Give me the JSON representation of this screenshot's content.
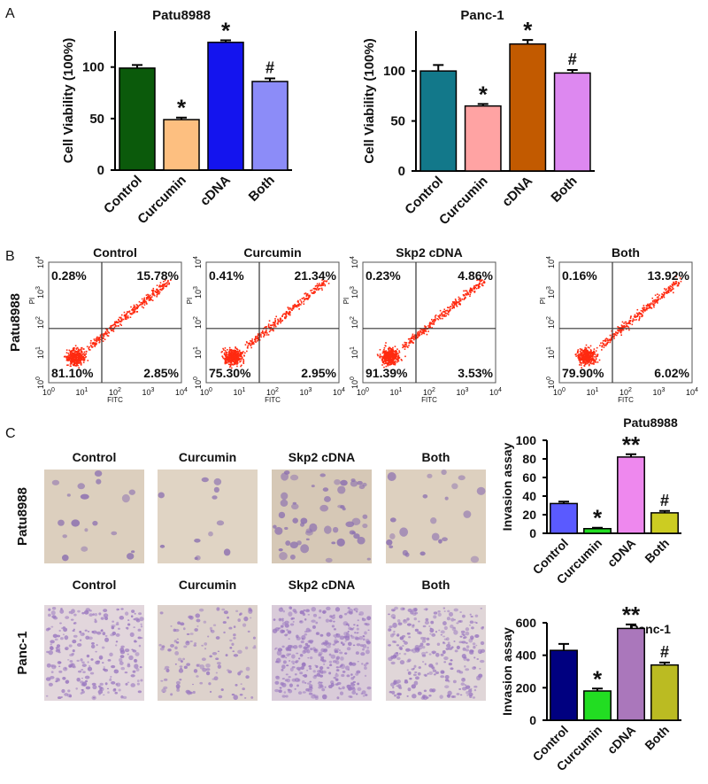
{
  "panel_labels": [
    "A",
    "B",
    "C"
  ],
  "chart_data": [
    {
      "type": "bar",
      "title": "Patu8988",
      "y_label": "Cell Viability (100%)",
      "categories": [
        "Control",
        "Curcumin",
        "cDNA",
        "Both"
      ],
      "values": [
        99,
        49,
        124,
        86
      ],
      "errors": [
        3,
        2,
        2,
        3
      ],
      "colors": [
        "#0b5a0b",
        "#fdbf80",
        "#1414ee",
        "#8c8cf8"
      ],
      "annotations": [
        null,
        "*",
        "*",
        "#"
      ],
      "ylim": [
        0,
        135
      ],
      "yticks": [
        0,
        50,
        100
      ]
    },
    {
      "type": "bar",
      "title": "Panc-1",
      "y_label": "Cell Viability (100%)",
      "categories": [
        "Control",
        "Curcumin",
        "cDNA",
        "Both"
      ],
      "values": [
        100,
        65,
        127,
        98
      ],
      "errors": [
        6,
        2,
        4,
        3
      ],
      "colors": [
        "#12788a",
        "#ffa3a3",
        "#c25a00",
        "#dd88f0"
      ],
      "annotations": [
        null,
        "*",
        "*",
        "#"
      ],
      "ylim": [
        0,
        140
      ],
      "yticks": [
        0,
        50,
        100
      ]
    },
    {
      "type": "bar",
      "title": "Patu8988",
      "y_label": "Invasion assay",
      "categories": [
        "Control",
        "Curcumin",
        "cDNA",
        "Both"
      ],
      "values": [
        32,
        5,
        82,
        22
      ],
      "errors": [
        2,
        1,
        3,
        2
      ],
      "colors": [
        "#5a5aff",
        "#22dd22",
        "#ee88ee",
        "#cccc22"
      ],
      "annotations": [
        null,
        "*",
        "**",
        "#"
      ],
      "ylim": [
        0,
        100
      ],
      "yticks": [
        0,
        20,
        40,
        60,
        80,
        100
      ]
    },
    {
      "type": "bar",
      "title": "Panc-1",
      "y_label": "Invasion assay",
      "categories": [
        "Control",
        "Curcumin",
        "cDNA",
        "Both"
      ],
      "values": [
        430,
        180,
        565,
        340
      ],
      "errors": [
        40,
        15,
        25,
        15
      ],
      "colors": [
        "#000080",
        "#22dd22",
        "#aa77bb",
        "#bbbb22"
      ],
      "annotations": [
        null,
        "*",
        "**",
        "#"
      ],
      "ylim": [
        0,
        600
      ],
      "yticks": [
        0,
        200,
        400,
        600
      ]
    }
  ],
  "flow_cytometry": {
    "row_label": "Patu8988",
    "x_label": "FITC",
    "y_label": "PI",
    "tick_base": "10",
    "tick_exponents": [
      "0",
      "1",
      "2",
      "3",
      "4"
    ],
    "plots": [
      {
        "title": "Control",
        "quadrants": [
          "0.28%",
          "15.78%",
          "81.10%",
          "2.85%"
        ]
      },
      {
        "title": "Curcumin",
        "quadrants": [
          "0.41%",
          "21.34%",
          "75.30%",
          "2.95%"
        ]
      },
      {
        "title": "Skp2 cDNA",
        "quadrants": [
          "0.23%",
          "4.86%",
          "91.39%",
          "3.53%"
        ]
      },
      {
        "title": "Both",
        "quadrants": [
          "0.16%",
          "13.92%",
          "79.90%",
          "6.02%"
        ]
      }
    ]
  },
  "micrographs": {
    "rows": [
      {
        "label": "Patu8988",
        "titles": [
          "Control",
          "Curcumin",
          "Skp2 cDNA",
          "Both"
        ]
      },
      {
        "label": "Panc-1",
        "titles": [
          "Control",
          "Curcumin",
          "Skp2 cDNA",
          "Both"
        ]
      }
    ]
  }
}
